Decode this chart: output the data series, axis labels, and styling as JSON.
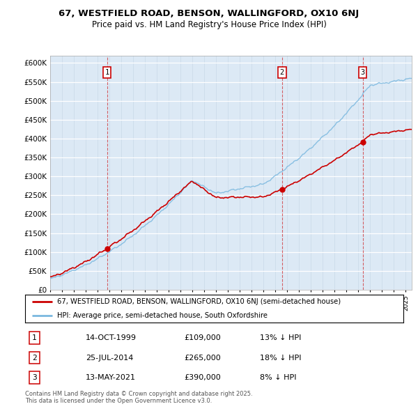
{
  "title_line1": "67, WESTFIELD ROAD, BENSON, WALLINGFORD, OX10 6NJ",
  "title_line2": "Price paid vs. HM Land Registry's House Price Index (HPI)",
  "bg_color": "#dce9f5",
  "hpi_color": "#7ab8df",
  "sale_color": "#cc0000",
  "ylim": [
    0,
    620000
  ],
  "yticks": [
    0,
    50000,
    100000,
    150000,
    200000,
    250000,
    300000,
    350000,
    400000,
    450000,
    500000,
    550000,
    600000
  ],
  "sales": [
    {
      "date_num": 1999.79,
      "price": 109000,
      "label": "1"
    },
    {
      "date_num": 2014.56,
      "price": 265000,
      "label": "2"
    },
    {
      "date_num": 2021.36,
      "price": 390000,
      "label": "3"
    }
  ],
  "legend_sale_label": "67, WESTFIELD ROAD, BENSON, WALLINGFORD, OX10 6NJ (semi-detached house)",
  "legend_hpi_label": "HPI: Average price, semi-detached house, South Oxfordshire",
  "table_entries": [
    {
      "num": "1",
      "date": "14-OCT-1999",
      "price": "£109,000",
      "note": "13% ↓ HPI"
    },
    {
      "num": "2",
      "date": "25-JUL-2014",
      "price": "£265,000",
      "note": "18% ↓ HPI"
    },
    {
      "num": "3",
      "date": "13-MAY-2021",
      "price": "£390,000",
      "note": "8% ↓ HPI"
    }
  ],
  "footer_text": "Contains HM Land Registry data © Crown copyright and database right 2025.\nThis data is licensed under the Open Government Licence v3.0.",
  "xmin": 1995.0,
  "xmax": 2025.5
}
